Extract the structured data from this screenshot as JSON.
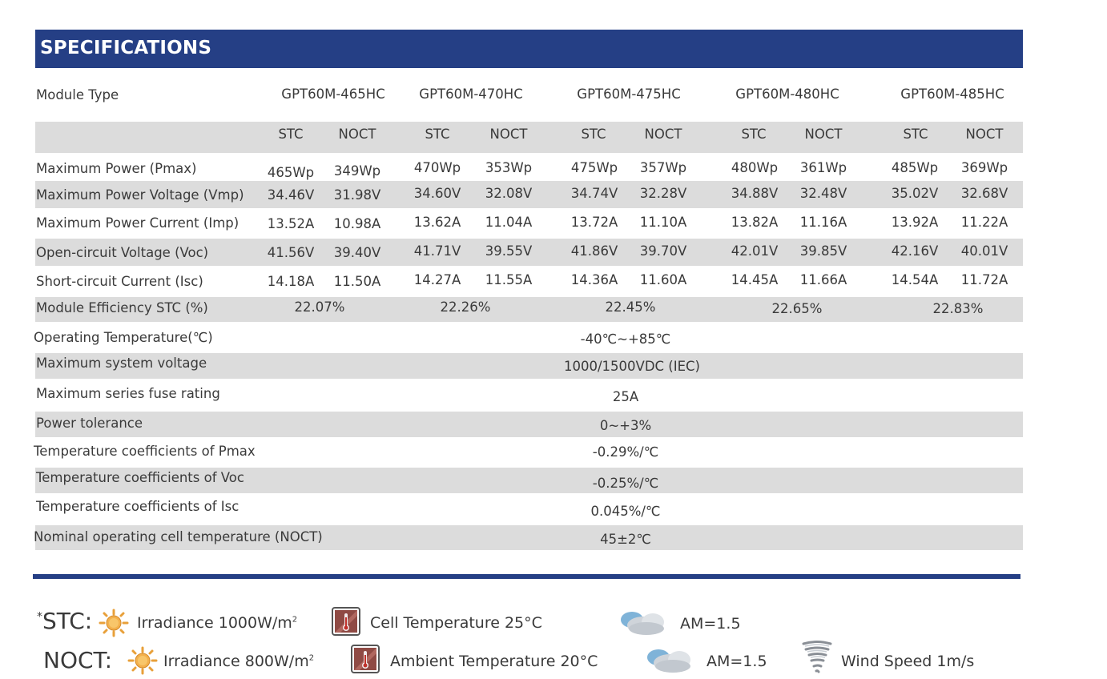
{
  "title": "SPECIFICATIONS",
  "module_type_label": "Module Type",
  "models": [
    "GPT60M-465HC",
    "GPT60M-470HC",
    "GPT60M-475HC",
    "GPT60M-480HC",
    "GPT60M-485HC"
  ],
  "conditions": [
    "STC",
    "NOCT"
  ],
  "electrical_rows": [
    {
      "label": "Maximum Power (Pmax)",
      "values": [
        "465Wp",
        "349Wp",
        "470Wp",
        "353Wp",
        "475Wp",
        "357Wp",
        "480Wp",
        "361Wp",
        "485Wp",
        "369Wp"
      ]
    },
    {
      "label": "Maximum Power Voltage (Vmp)",
      "values": [
        "34.46V",
        "31.98V",
        "34.60V",
        "32.08V",
        "34.74V",
        "32.28V",
        "34.88V",
        "32.48V",
        "35.02V",
        "32.68V"
      ]
    },
    {
      "label": "Maximum Power Current (Imp)",
      "values": [
        "13.52A",
        "10.98A",
        "13.62A",
        "11.04A",
        "13.72A",
        "11.10A",
        "13.82A",
        "11.16A",
        "13.92A",
        "11.22A"
      ]
    },
    {
      "label": "Open-circuit Voltage (Voc)",
      "values": [
        "41.56V",
        "39.40V",
        "41.71V",
        "39.55V",
        "41.86V",
        "39.70V",
        "42.01V",
        "39.85V",
        "42.16V",
        "40.01V"
      ]
    },
    {
      "label": "Short-circuit Current (Isc)",
      "values": [
        "14.18A",
        "11.50A",
        "14.27A",
        "11.55A",
        "14.36A",
        "11.60A",
        "14.45A",
        "11.66A",
        "14.54A",
        "11.72A"
      ]
    }
  ],
  "efficiency_row": {
    "label": "Module Efficiency STC (%)",
    "values": [
      "22.07%",
      "22.26%",
      "22.45%",
      "22.65%",
      "22.83%"
    ]
  },
  "general_rows": [
    {
      "label": "Operating Temperature(℃)",
      "value": "-40℃~+85℃"
    },
    {
      "label": "Maximum system voltage",
      "value": "1000/1500VDC (IEC)"
    },
    {
      "label": "Maximum series fuse rating",
      "value": "25A"
    },
    {
      "label": "Power tolerance",
      "value": "0~+3%"
    },
    {
      "label": "Temperature coefficients of Pmax",
      "value": "-0.29%/℃"
    },
    {
      "label": "Temperature coefficients of Voc",
      "value": "-0.25%/℃"
    },
    {
      "label": "Temperature coefficients of Isc",
      "value": "0.045%/℃"
    },
    {
      "label": "Nominal operating cell temperature  (NOCT)",
      "value": "45±2℃"
    }
  ],
  "legend": {
    "stc": {
      "prefix": "*",
      "label": "STC:",
      "irradiance": "Irradiance 1000W/m",
      "irradiance_sup": "2",
      "temperature": "Cell Temperature 25°C",
      "am": "AM=1.5"
    },
    "noct": {
      "label": "NOCT:",
      "irradiance": "Irradiance 800W/m",
      "irradiance_sup": "2",
      "temperature": "Ambient Temperature 20°C",
      "am": "AM=1.5",
      "wind": "Wind Speed 1m/s"
    }
  },
  "icons": [
    "sun-icon",
    "thermometer-icon",
    "cloud-icon",
    "tornado-icon"
  ],
  "colors": {
    "header": "#253f85",
    "shade": "#dcdcdc",
    "text": "#3a3a3a"
  }
}
